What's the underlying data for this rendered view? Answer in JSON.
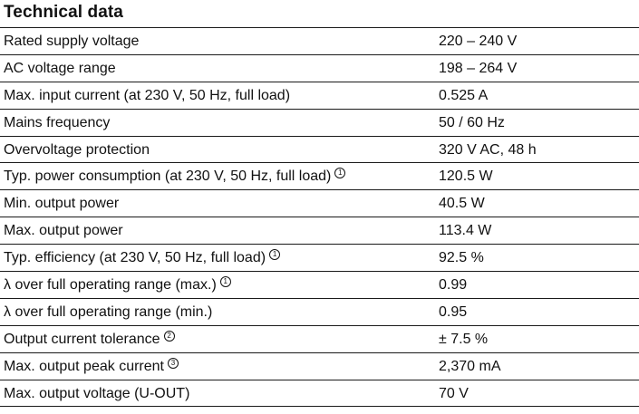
{
  "title": "Technical data",
  "rows": [
    {
      "label": "Rated supply voltage",
      "note": "",
      "value": "220 – 240 V"
    },
    {
      "label": "AC voltage range",
      "note": "",
      "value": "198 – 264 V"
    },
    {
      "label": "Max. input current (at 230 V, 50 Hz, full load)",
      "note": "",
      "value": "0.525 A"
    },
    {
      "label": "Mains frequency",
      "note": "",
      "value": "50 / 60 Hz"
    },
    {
      "label": "Overvoltage protection",
      "note": "",
      "value": "320 V AC, 48 h"
    },
    {
      "label": "Typ. power consumption (at 230 V, 50 Hz, full load)",
      "note": "1",
      "value": "120.5 W"
    },
    {
      "label": "Min. output power",
      "note": "",
      "value": "40.5 W"
    },
    {
      "label": "Max. output power",
      "note": "",
      "value": "113.4 W"
    },
    {
      "label": "Typ. efficiency (at 230 V, 50 Hz, full load)",
      "note": "1",
      "value": "92.5 %"
    },
    {
      "label": "λ over full operating range (max.)",
      "note": "1",
      "value": "0.99"
    },
    {
      "label": "λ over full operating range (min.)",
      "note": "",
      "value": "0.95"
    },
    {
      "label": "Output current tolerance",
      "note": "2",
      "value": "± 7.5 %"
    },
    {
      "label": "Max. output peak current",
      "note": "3",
      "value": "2,370 mA"
    },
    {
      "label": "Max. output voltage (U-OUT)",
      "note": "",
      "value": "70 V"
    }
  ]
}
